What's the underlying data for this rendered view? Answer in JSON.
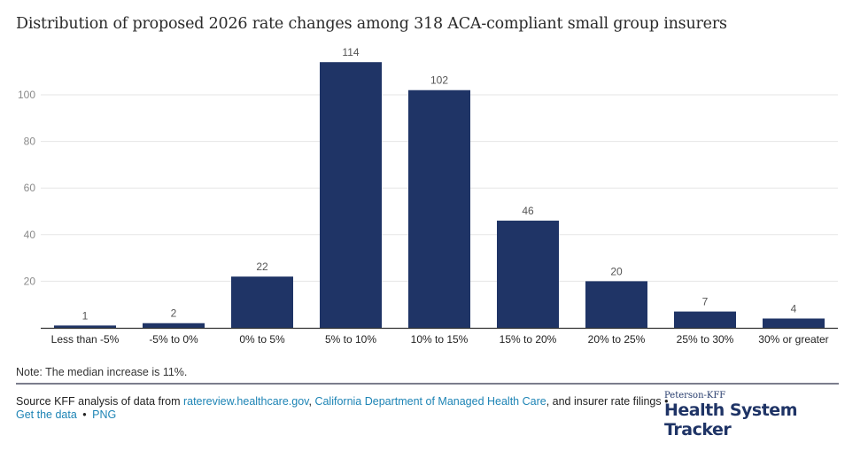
{
  "chart_data": {
    "type": "bar",
    "title": "Distribution of proposed 2026 rate changes among 318 ACA-compliant small group insurers",
    "xlabel": "",
    "ylabel": "",
    "categories": [
      "Less than -5%",
      "-5% to 0%",
      "0% to 5%",
      "5% to 10%",
      "10% to 15%",
      "15% to 20%",
      "20% to 25%",
      "25% to 30%",
      "30% or greater"
    ],
    "values": [
      1,
      2,
      22,
      114,
      102,
      46,
      20,
      7,
      4
    ],
    "yticks": [
      20,
      40,
      60,
      80,
      100
    ],
    "ylim": [
      0,
      114
    ],
    "grid": true,
    "bar_color": "#1f3466",
    "data_labels": true
  },
  "note": "Note: The median increase is 11%.",
  "source": {
    "prefix": "Source KFF analysis of data from ",
    "link1": "ratereview.healthcare.gov",
    "sep1": ", ",
    "link2": "California Department of Managed Health Care",
    "suffix": ", and insurer rate filings •",
    "get_data": "Get the data",
    "bullet": "•",
    "png": "PNG"
  },
  "logo": {
    "sub": "Peterson-KFF",
    "main": "Health System Tracker"
  },
  "colors": {
    "bar": "#1f3466",
    "link": "#1d84b5",
    "gridline": "#e6e6e6"
  }
}
